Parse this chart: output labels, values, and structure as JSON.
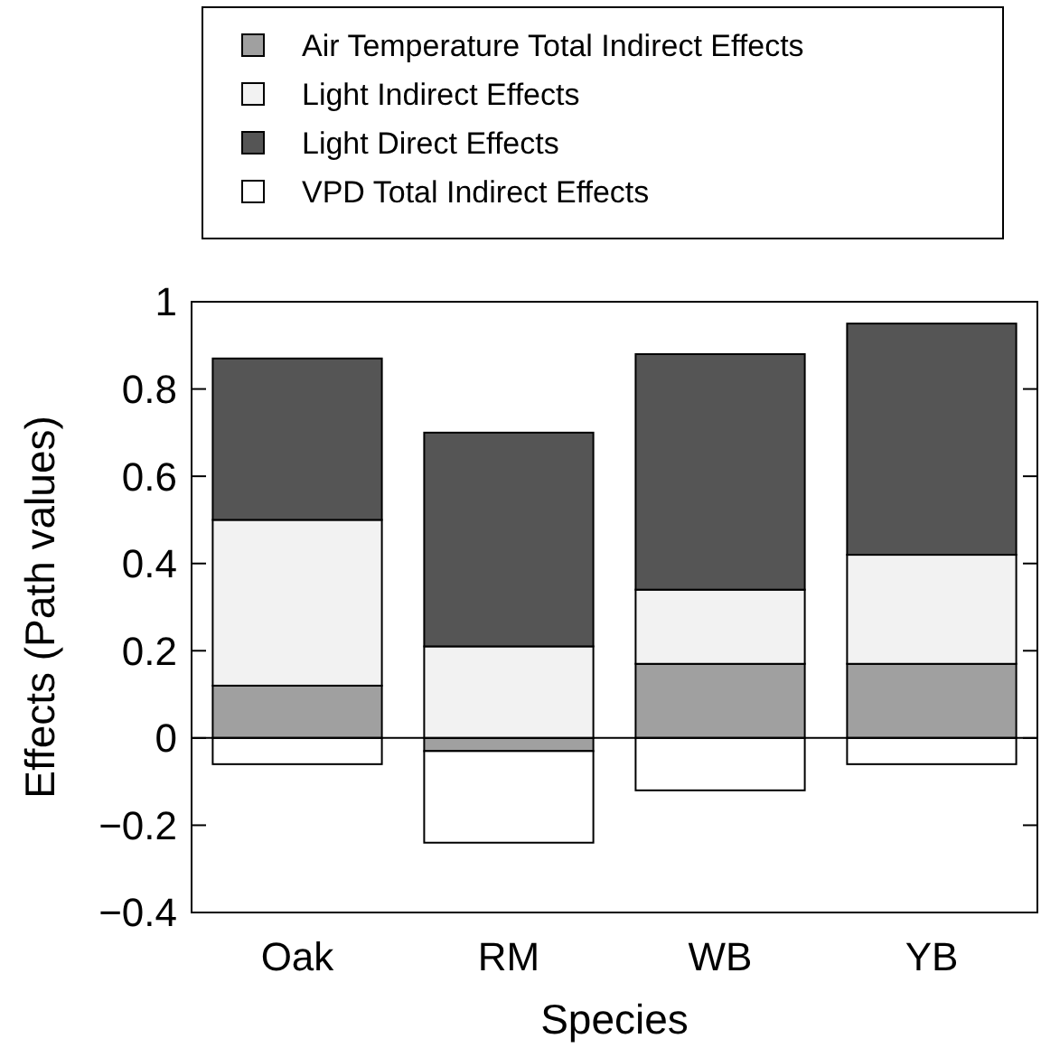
{
  "chart_data": {
    "type": "bar",
    "stacked": true,
    "xlabel": "Species",
    "ylabel": "Effects (Path values)",
    "categories": [
      "Oak",
      "RM",
      "WB",
      "YB"
    ],
    "series": [
      {
        "name": "Air Temperature Total Indirect Effects",
        "color": "#a0a0a0",
        "values": [
          0.12,
          -0.03,
          0.17,
          0.17
        ]
      },
      {
        "name": "Light Indirect Effects",
        "color": "#f2f2f2",
        "values": [
          0.38,
          0.21,
          0.17,
          0.25
        ]
      },
      {
        "name": "Light Direct Effects",
        "color": "#555555",
        "values": [
          0.37,
          0.49,
          0.54,
          0.53
        ]
      },
      {
        "name": "VPD Total Indirect Effects",
        "color": "#ffffff",
        "values": [
          -0.06,
          -0.21,
          -0.12,
          -0.06
        ]
      }
    ],
    "ylim": [
      -0.4,
      1
    ],
    "yticks": [
      -0.4,
      -0.2,
      0,
      0.2,
      0.4,
      0.6,
      0.8,
      1
    ],
    "legend": "top"
  }
}
